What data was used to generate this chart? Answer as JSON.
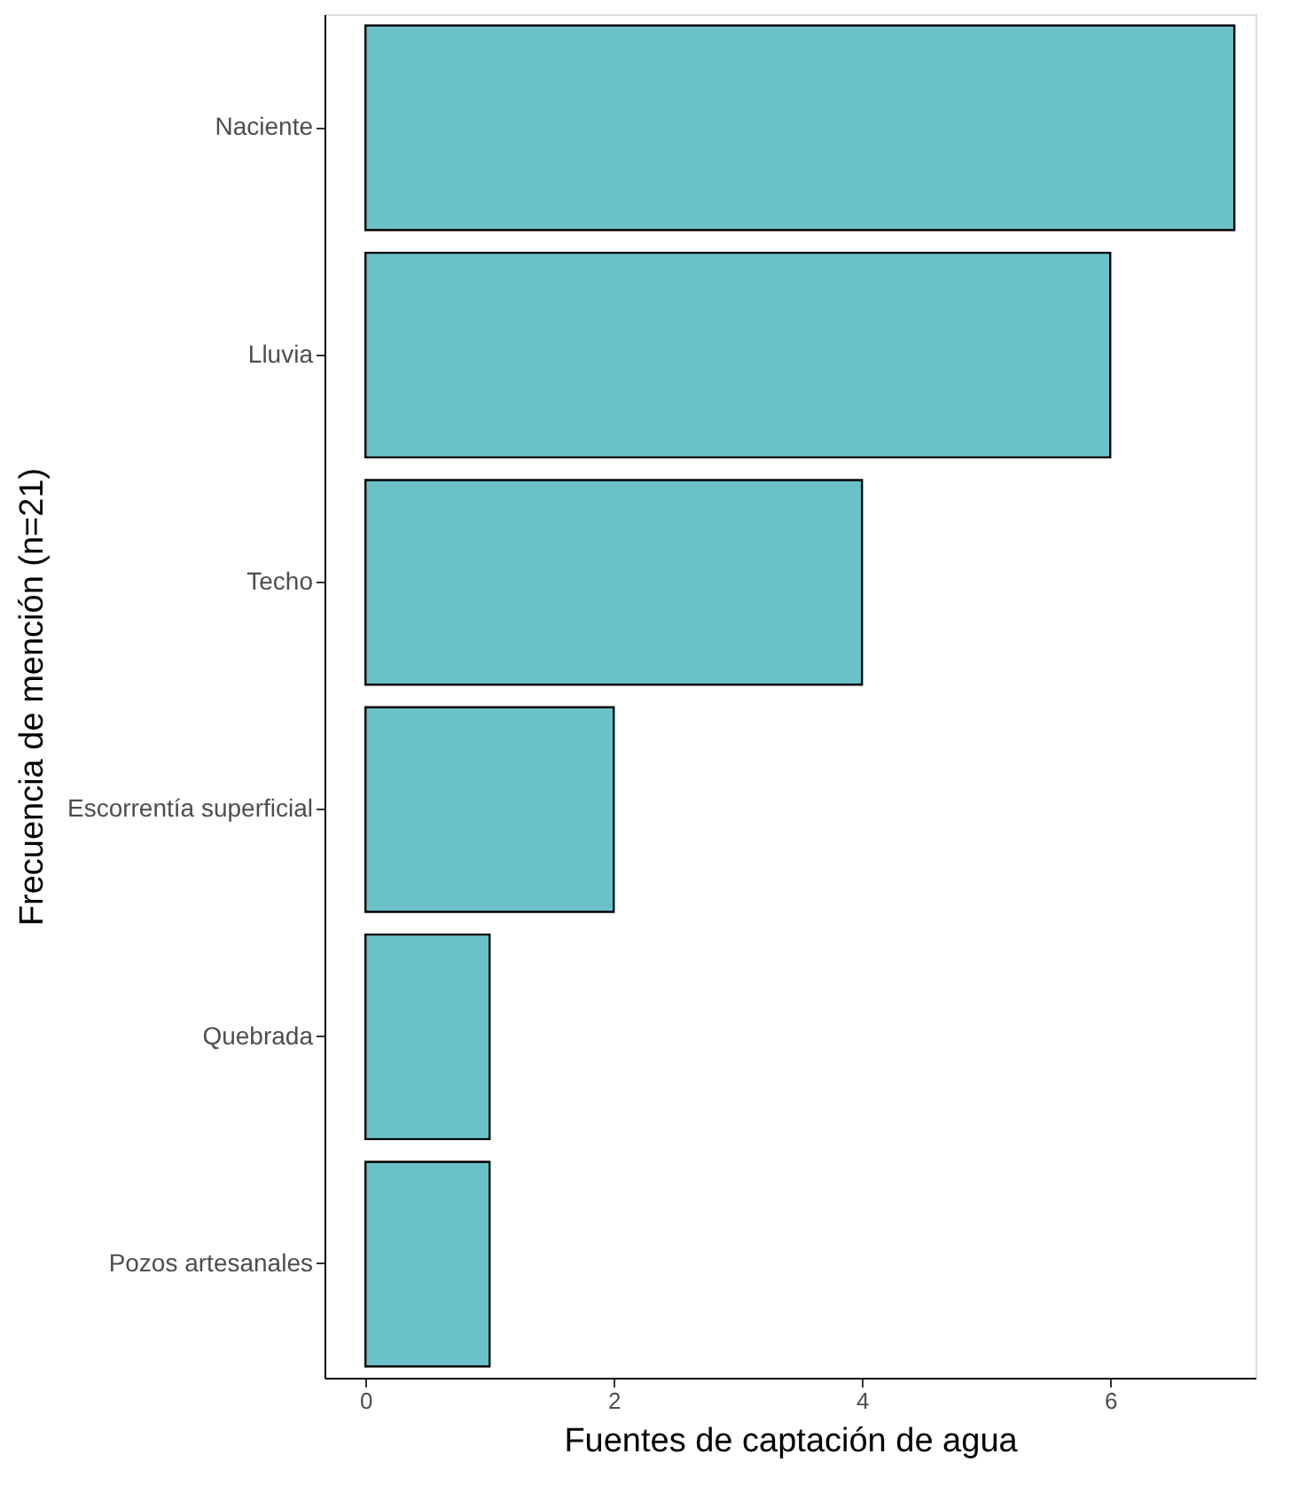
{
  "chart_data": {
    "type": "bar",
    "orientation": "horizontal",
    "xlabel": "Fuentes de captación de agua",
    "ylabel": "Frecuencia de mención (n=21)",
    "categories": [
      "Naciente",
      "Lluvia",
      "Techo",
      "Escorrentía superficial",
      "Quebrada",
      "Pozos artesanales"
    ],
    "values": [
      7,
      6,
      4,
      2,
      1,
      1
    ],
    "color": "#6bc1c8",
    "xlim": [
      -0.33,
      7.17
    ],
    "xticks": [
      0,
      2,
      4,
      6
    ],
    "grid": false
  }
}
